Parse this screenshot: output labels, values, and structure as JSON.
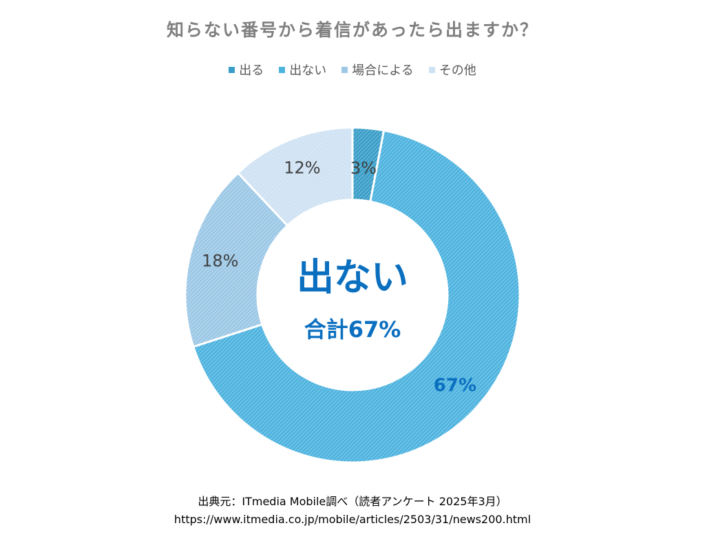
{
  "chart_data": {
    "type": "pie",
    "title": "知らない番号から着信があったら出ますか？",
    "categories": [
      "出る",
      "出ない",
      "場合による",
      "その他"
    ],
    "values": [
      3,
      67,
      18,
      12
    ],
    "value_labels": [
      "3%",
      "67%",
      "18%",
      "12%"
    ],
    "legend_position": "top",
    "center_text": {
      "main": "出ない",
      "sub": "合計67%"
    },
    "colors": [
      "#3a9ec8",
      "#4db3df",
      "#9cc8e6",
      "#cfe2f3"
    ]
  },
  "source": {
    "line1": "出典元：ITmedia Mobile調べ（読者アンケート 2025年3月）",
    "line2": "https://www.itmedia.co.jp/mobile/articles/2503/31/news200.html"
  }
}
